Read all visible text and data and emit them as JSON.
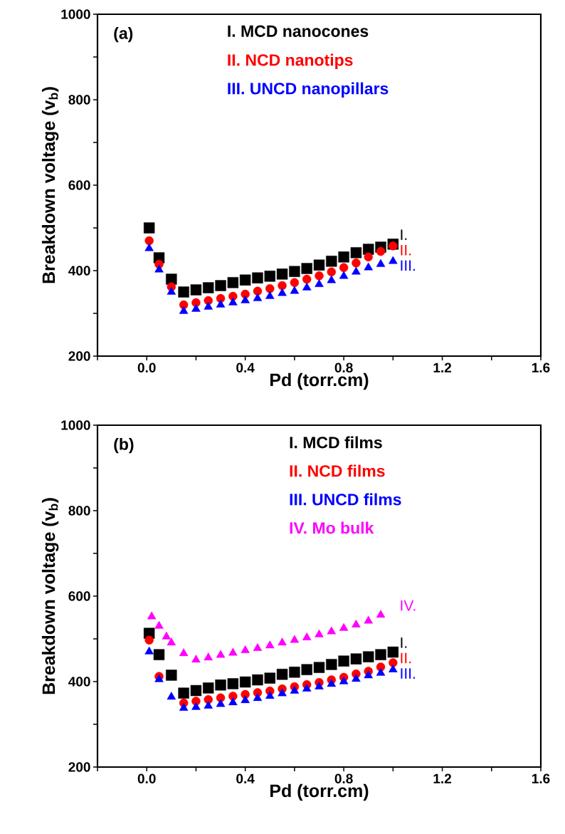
{
  "chart_data": [
    {
      "type": "scatter",
      "title": "(a)",
      "xlabel": "Pd (torr.cm)",
      "ylabel": "Breakdown voltage (v$_{b}$)",
      "xlim": [
        -0.2,
        1.6
      ],
      "ylim": [
        200,
        1000
      ],
      "xticks": [
        {
          "value": -0.2,
          "label": null
        },
        {
          "value": 0.0,
          "label": "0.0"
        },
        {
          "value": 0.2,
          "label": null
        },
        {
          "value": 0.4,
          "label": "0.4"
        },
        {
          "value": 0.6,
          "label": null
        },
        {
          "value": 0.8,
          "label": "0.8"
        },
        {
          "value": 1.0,
          "label": null
        },
        {
          "value": 1.2,
          "label": "1.2"
        },
        {
          "value": 1.4,
          "label": null
        },
        {
          "value": 1.6,
          "label": "1.6"
        }
      ],
      "yticks": [
        200,
        {
          "value": 300,
          "label": null
        },
        400,
        {
          "value": 500,
          "label": null
        },
        600,
        {
          "value": 700,
          "label": null
        },
        800,
        {
          "value": 900,
          "label": null
        },
        1000
      ],
      "legend": "top",
      "x": [
        0.01,
        0.05,
        0.1,
        0.15,
        0.2,
        0.25,
        0.3,
        0.35,
        0.4,
        0.45,
        0.5,
        0.55,
        0.6,
        0.65,
        0.7,
        0.75,
        0.8,
        0.85,
        0.9,
        0.95,
        1.0
      ],
      "series": [
        {
          "name": "I. MCD nanocones",
          "color": "#000000",
          "marker": "square",
          "values": [
            500,
            430,
            380,
            350,
            355,
            360,
            365,
            372,
            378,
            383,
            387,
            392,
            398,
            405,
            413,
            422,
            432,
            442,
            450,
            455,
            462
          ]
        },
        {
          "name": "II. NCD nanotips",
          "color": "#ff0000",
          "marker": "circle",
          "values": [
            470,
            415,
            362,
            320,
            325,
            330,
            335,
            340,
            345,
            352,
            358,
            365,
            372,
            380,
            388,
            397,
            407,
            418,
            432,
            445,
            458
          ]
        },
        {
          "name": "III. UNCD nanopillars",
          "color": "#0000ff",
          "marker": "triangle",
          "values": [
            452,
            402,
            350,
            305,
            310,
            315,
            320,
            325,
            330,
            335,
            340,
            347,
            352,
            360,
            368,
            377,
            387,
            397,
            407,
            415,
            422
          ]
        }
      ],
      "annotations": [
        "I.",
        "II.",
        "III."
      ]
    },
    {
      "type": "scatter",
      "title": "(b)",
      "xlabel": "Pd (torr.cm)",
      "ylabel": "Breakdown voltage (v$_{b}$)",
      "xlim": [
        -0.2,
        1.6
      ],
      "ylim": [
        200,
        1000
      ],
      "xticks": [
        {
          "value": -0.2,
          "label": null
        },
        {
          "value": 0.0,
          "label": "0.0"
        },
        {
          "value": 0.2,
          "label": null
        },
        {
          "value": 0.4,
          "label": "0.4"
        },
        {
          "value": 0.6,
          "label": null
        },
        {
          "value": 0.8,
          "label": "0.8"
        },
        {
          "value": 1.0,
          "label": null
        },
        {
          "value": 1.2,
          "label": "1.2"
        },
        {
          "value": 1.4,
          "label": null
        },
        {
          "value": 1.6,
          "label": "1.6"
        }
      ],
      "yticks": [
        200,
        {
          "value": 300,
          "label": null
        },
        400,
        {
          "value": 500,
          "label": null
        },
        600,
        {
          "value": 700,
          "label": null
        },
        800,
        {
          "value": 900,
          "label": null
        },
        1000
      ],
      "legend": "top right",
      "x": [
        0.01,
        0.05,
        0.1,
        0.15,
        0.2,
        0.25,
        0.3,
        0.35,
        0.4,
        0.45,
        0.5,
        0.55,
        0.6,
        0.65,
        0.7,
        0.75,
        0.8,
        0.85,
        0.9,
        0.95,
        1.0
      ],
      "series": [
        {
          "name": "I. MCD films",
          "color": "#000000",
          "marker": "square",
          "values": [
            513,
            463,
            415,
            373,
            379,
            385,
            392,
            395,
            399,
            404,
            408,
            417,
            422,
            428,
            433,
            440,
            448,
            453,
            458,
            463,
            469
          ]
        },
        {
          "name": "II. NCD films",
          "color": "#ff0000",
          "marker": "circle",
          "values": [
            497,
            412,
            null,
            350,
            354,
            358,
            362,
            366,
            370,
            374,
            378,
            383,
            388,
            393,
            398,
            404,
            410,
            418,
            424,
            434,
            444
          ]
        },
        {
          "name": "III. UNCD films",
          "color": "#0000ff",
          "marker": "triangle",
          "values": [
            470,
            405,
            364,
            338,
            340,
            343,
            347,
            351,
            356,
            361,
            366,
            372,
            378,
            383,
            388,
            394,
            400,
            406,
            414,
            420,
            428
          ]
        },
        {
          "name": "IV. Mo bulk",
          "color": "#ff00ff",
          "marker": "triangle",
          "x": [
            0.02,
            0.05,
            0.08,
            0.1,
            0.15,
            0.2,
            0.25,
            0.3,
            0.35,
            0.4,
            0.45,
            0.5,
            0.55,
            0.6,
            0.65,
            0.7,
            0.75,
            0.8,
            0.85,
            0.9,
            0.95
          ],
          "values": [
            552,
            530,
            505,
            491,
            466,
            451,
            456,
            462,
            467,
            473,
            478,
            484,
            491,
            497,
            503,
            510,
            517,
            525,
            533,
            542,
            556
          ]
        }
      ],
      "annotations": [
        "IV.",
        "I.",
        "II.",
        "III."
      ]
    }
  ]
}
